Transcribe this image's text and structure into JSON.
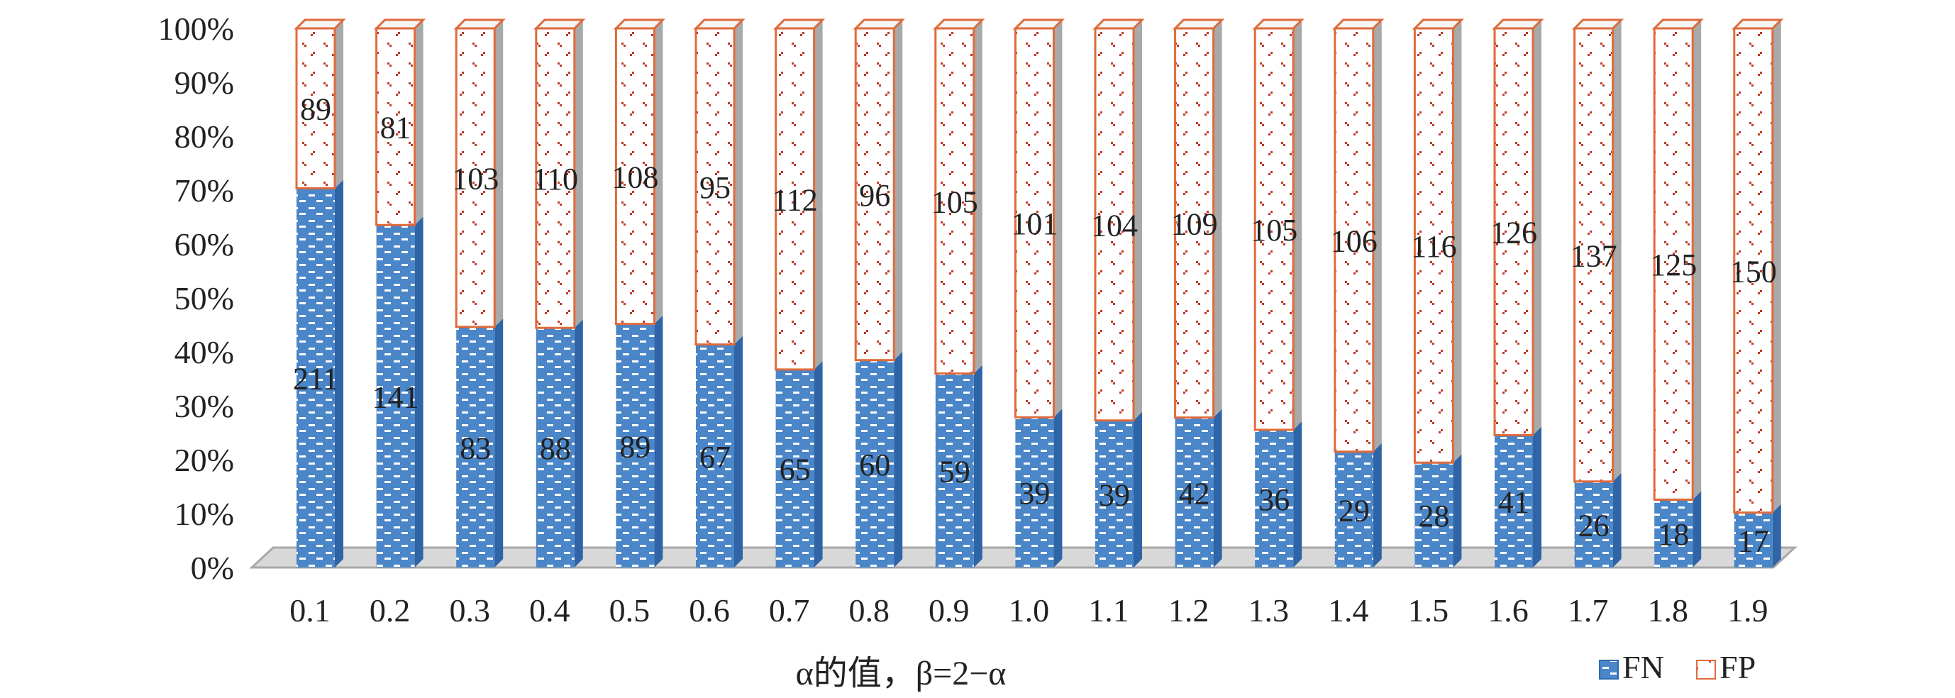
{
  "chart_data": {
    "type": "bar",
    "stacked": true,
    "normalized": true,
    "three_d": true,
    "categories": [
      "0.1",
      "0.2",
      "0.3",
      "0.4",
      "0.5",
      "0.6",
      "0.7",
      "0.8",
      "0.9",
      "1.0",
      "1.1",
      "1.2",
      "1.3",
      "1.4",
      "1.5",
      "1.6",
      "1.7",
      "1.8",
      "1.9"
    ],
    "series": [
      {
        "name": "FN",
        "values": [
          211,
          141,
          83,
          88,
          89,
          67,
          65,
          60,
          59,
          39,
          39,
          42,
          36,
          29,
          28,
          41,
          26,
          18,
          17
        ],
        "color": "#4a86c8"
      },
      {
        "name": "FP",
        "values": [
          89,
          81,
          103,
          110,
          108,
          95,
          112,
          96,
          105,
          101,
          104,
          109,
          105,
          106,
          116,
          126,
          137,
          125,
          150
        ],
        "color": "#e06a3a"
      }
    ],
    "xlabel": "α的值，β=2−α",
    "yticks": [
      "0%",
      "10%",
      "20%",
      "30%",
      "40%",
      "50%",
      "60%",
      "70%",
      "80%",
      "90%",
      "100%"
    ],
    "ylim": [
      0,
      100
    ],
    "grid": false,
    "legend_position": "bottom-right"
  }
}
